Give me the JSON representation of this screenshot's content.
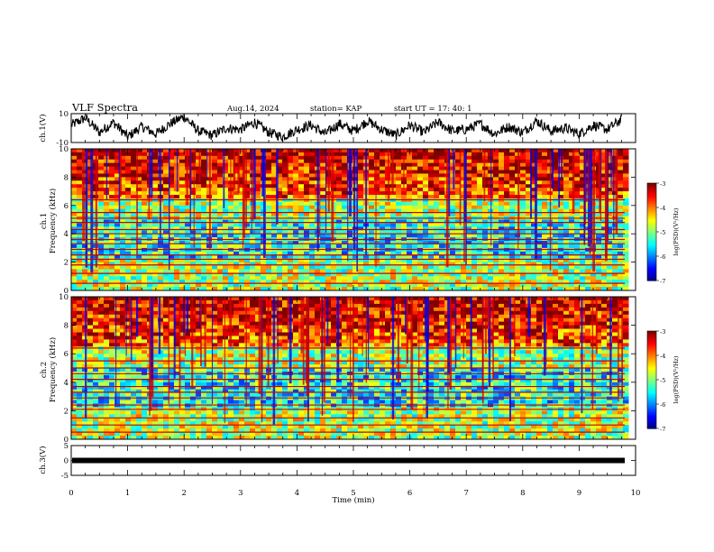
{
  "header": {
    "title": "VLF Spectra",
    "date": "Aug.14, 2024",
    "station": "station= KAP",
    "start": "start  UT =   17: 40: 1"
  },
  "colorbar": {
    "label": "log(PSD)(V²/Hz)",
    "ticks": [
      "-3",
      "-4",
      "-5",
      "-6",
      "-7"
    ]
  },
  "chart_data": [
    {
      "type": "line",
      "name": "ch1-waveform",
      "ylabel": "ch.1(V)",
      "ylim": [
        -10,
        10
      ],
      "xlim": [
        0,
        10
      ],
      "x_ticks": [
        0,
        1,
        2,
        3,
        4,
        5,
        6,
        7,
        8,
        9,
        10
      ],
      "y_tick_labels": [
        "10",
        "-10"
      ],
      "x": [
        0,
        0.25,
        0.5,
        0.75,
        1,
        1.25,
        1.5,
        1.75,
        2,
        2.25,
        2.5,
        2.75,
        3,
        3.25,
        3.5,
        3.75,
        4,
        4.25,
        4.5,
        4.75,
        5,
        5.25,
        5.5,
        5.75,
        6,
        6.25,
        6.5,
        6.75,
        7,
        7.25,
        7.5,
        7.75,
        8,
        8.25,
        8.5,
        8.75,
        9,
        9.25,
        9.5,
        9.75
      ],
      "y": [
        2,
        7,
        -3,
        4,
        -6,
        1,
        -4,
        3,
        8,
        -2,
        -5,
        0,
        -1,
        4,
        -3,
        -6,
        -1,
        2,
        -4,
        3,
        -2,
        5,
        -1,
        -5,
        2,
        -3,
        4,
        -2,
        -1,
        3,
        -4,
        1,
        -3,
        5,
        -2,
        0,
        -4,
        2,
        -1,
        6
      ]
    },
    {
      "type": "heatmap",
      "name": "ch1-spectrogram",
      "ylabel": "ch.1\nFrequency (kHz)",
      "xlim": [
        0,
        10
      ],
      "ylim": [
        0,
        10
      ],
      "y_tick_labels": [
        "0",
        "2",
        "4",
        "6",
        "8",
        "10"
      ],
      "color_range": [
        -7,
        -3
      ],
      "horizontal_lines_khz": [
        0.5,
        1.2,
        1.8,
        2.2,
        2.5,
        2.9,
        3.3,
        3.6,
        4.0,
        4.3,
        4.8,
        5.1,
        5.5,
        6.4
      ]
    },
    {
      "type": "heatmap",
      "name": "ch2-spectrogram",
      "ylabel": "ch.2\nFrequency (kHz)",
      "xlim": [
        0,
        10
      ],
      "ylim": [
        0,
        10
      ],
      "y_tick_labels": [
        "0",
        "2",
        "4",
        "6",
        "8",
        "10"
      ],
      "color_range": [
        -7,
        -3
      ],
      "horizontal_lines_khz": [
        0.5,
        1.0,
        1.5,
        2.1,
        2.4,
        2.9,
        3.3,
        3.7,
        4.2,
        4.6,
        5.0,
        5.5,
        6.4
      ]
    },
    {
      "type": "line",
      "name": "ch3-waveform",
      "ylabel": "ch.3(V)",
      "xlabel": "Time (min)",
      "xlim": [
        0,
        10
      ],
      "ylim": [
        -5,
        5
      ],
      "y_tick_labels": [
        "5",
        "0",
        "-5"
      ],
      "x_tick_labels": [
        "0",
        "1",
        "2",
        "3",
        "4",
        "5",
        "6",
        "7",
        "8",
        "9",
        "10"
      ],
      "level_v": 0
    }
  ]
}
